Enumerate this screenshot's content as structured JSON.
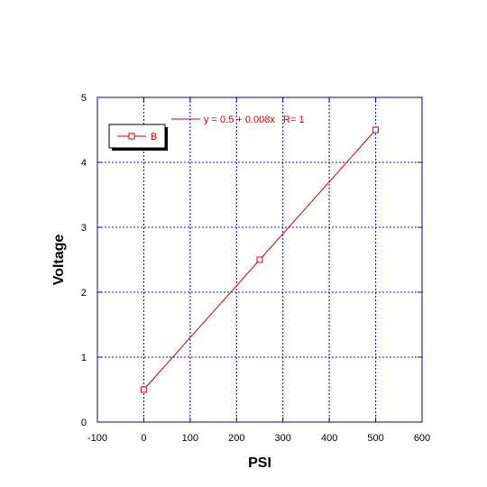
{
  "chart_data": {
    "type": "line",
    "title": "",
    "xlabel": "PSI",
    "ylabel": "Voltage",
    "xlim": [
      -100,
      600
    ],
    "ylim": [
      0,
      5
    ],
    "xticks": [
      -100,
      0,
      100,
      200,
      300,
      400,
      500,
      600
    ],
    "yticks": [
      0,
      1,
      2,
      3,
      4,
      5
    ],
    "grid": true,
    "legend_position": "top-left",
    "series": [
      {
        "name": "B",
        "x": [
          0,
          250,
          500
        ],
        "y": [
          0.5,
          2.5,
          4.5
        ],
        "marker": "open-square"
      }
    ],
    "annotations": [
      {
        "text": "y = 0.5 + 0.008x   R= 1",
        "kind": "fit-line-label"
      }
    ]
  },
  "colors": {
    "axis_frame": "#00008b",
    "grid": "#0000cc",
    "series": "#cc0000",
    "fit_label": "#cc0000"
  }
}
